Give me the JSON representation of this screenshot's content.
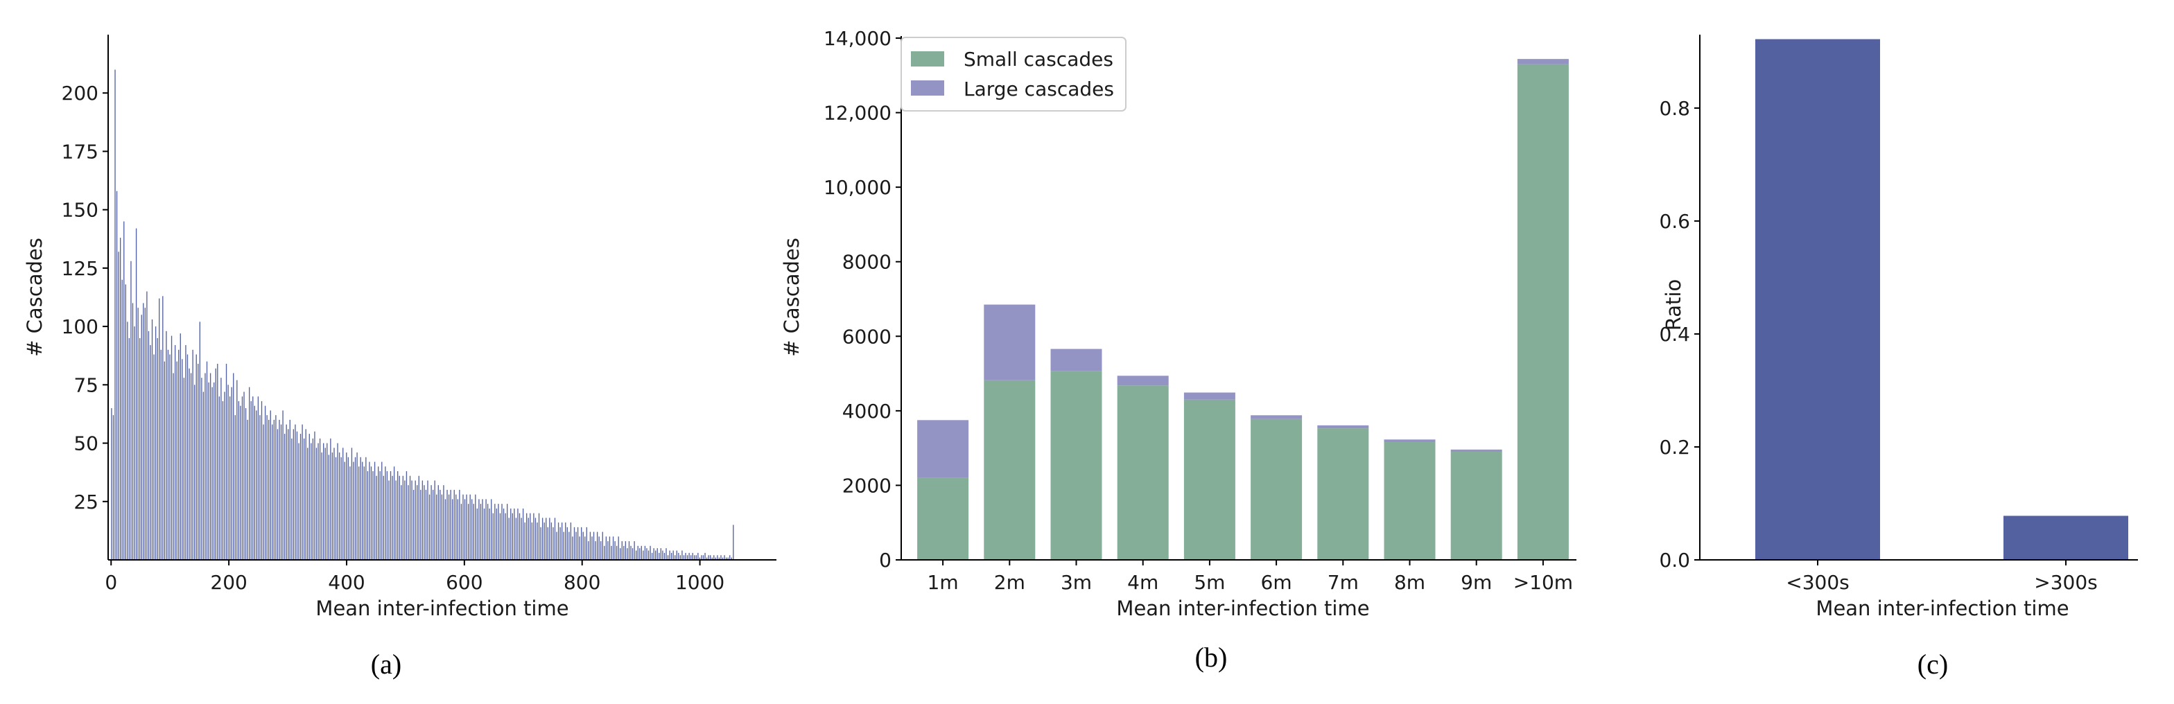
{
  "colors": {
    "bar_a": "#5461a0",
    "bar_c": "#5461a0",
    "small": "#84ae98",
    "large": "#9393c4",
    "axis": "#000000"
  },
  "chart_data": [
    {
      "type": "bar",
      "caption": "(a)",
      "xlabel": "Mean inter-infection time",
      "ylabel": "# Cascades",
      "xlim": [
        -5,
        1130
      ],
      "ylim": [
        0,
        225
      ],
      "xticks": [
        0,
        200,
        400,
        600,
        800,
        1000
      ],
      "xtick_labels": [
        "0",
        "200",
        "400",
        "600",
        "800",
        "1000"
      ],
      "yticks": [
        25,
        50,
        75,
        100,
        125,
        150,
        175,
        200
      ],
      "ytick_labels": [
        "25",
        "50",
        "75",
        "100",
        "125",
        "150",
        "175",
        "200"
      ],
      "bin_width": 3,
      "x_start": 0,
      "values": [
        65,
        62,
        210,
        158,
        132,
        138,
        120,
        145,
        118,
        102,
        95,
        128,
        110,
        100,
        142,
        108,
        95,
        105,
        110,
        108,
        115,
        98,
        92,
        103,
        88,
        100,
        95,
        112,
        90,
        113,
        85,
        98,
        90,
        88,
        96,
        80,
        92,
        85,
        90,
        97,
        86,
        78,
        92,
        88,
        82,
        80,
        90,
        75,
        88,
        84,
        102,
        78,
        72,
        80,
        85,
        76,
        80,
        74,
        76,
        82,
        84,
        70,
        78,
        68,
        72,
        84,
        75,
        70,
        74,
        80,
        62,
        77,
        68,
        66,
        70,
        72,
        65,
        60,
        74,
        68,
        70,
        66,
        64,
        70,
        62,
        68,
        58,
        66,
        62,
        60,
        64,
        58,
        60,
        62,
        56,
        60,
        58,
        64,
        54,
        58,
        56,
        60,
        52,
        56,
        58,
        55,
        50,
        54,
        58,
        52,
        56,
        48,
        54,
        50,
        52,
        55,
        48,
        50,
        52,
        46,
        50,
        48,
        50,
        45,
        52,
        46,
        48,
        44,
        50,
        46,
        44,
        48,
        42,
        46,
        44,
        40,
        48,
        42,
        44,
        46,
        40,
        44,
        42,
        40,
        44,
        38,
        42,
        40,
        38,
        42,
        36,
        40,
        38,
        42,
        36,
        40,
        38,
        34,
        38,
        36,
        40,
        34,
        38,
        36,
        32,
        36,
        34,
        38,
        32,
        36,
        34,
        30,
        34,
        32,
        36,
        30,
        34,
        32,
        30,
        34,
        28,
        32,
        30,
        34,
        28,
        32,
        30,
        28,
        32,
        26,
        30,
        28,
        30,
        26,
        30,
        28,
        26,
        30,
        24,
        28,
        26,
        28,
        24,
        28,
        26,
        24,
        28,
        22,
        26,
        24,
        26,
        22,
        26,
        24,
        22,
        26,
        20,
        24,
        22,
        24,
        20,
        24,
        22,
        20,
        24,
        18,
        22,
        20,
        22,
        18,
        22,
        20,
        18,
        22,
        16,
        20,
        18,
        20,
        16,
        20,
        18,
        16,
        20,
        14,
        18,
        16,
        18,
        14,
        18,
        16,
        14,
        18,
        12,
        16,
        14,
        16,
        12,
        16,
        14,
        12,
        16,
        10,
        14,
        12,
        14,
        10,
        14,
        12,
        10,
        14,
        8,
        12,
        10,
        12,
        8,
        12,
        10,
        8,
        12,
        6,
        10,
        8,
        10,
        6,
        10,
        8,
        6,
        10,
        5,
        8,
        6,
        8,
        5,
        8,
        6,
        5,
        8,
        4,
        6,
        5,
        6,
        4,
        6,
        5,
        4,
        6,
        3,
        5,
        4,
        5,
        3,
        5,
        4,
        3,
        5,
        2,
        4,
        3,
        4,
        2,
        4,
        3,
        2,
        4,
        2,
        3,
        2,
        3,
        2,
        3,
        2,
        2,
        3,
        1,
        2,
        2,
        3,
        1,
        2,
        2,
        1,
        2,
        1,
        2,
        1,
        2,
        1,
        2,
        1,
        1,
        2,
        1,
        15
      ]
    },
    {
      "type": "bar",
      "stacked": true,
      "caption": "(b)",
      "xlabel": "Mean inter-infection time",
      "ylabel": "# Cascades",
      "ylim": [
        0,
        14000
      ],
      "yticks": [
        0,
        2000,
        4000,
        6000,
        8000,
        10000,
        12000,
        14000
      ],
      "ytick_labels": [
        "0",
        "2000",
        "4000",
        "6000",
        "8000",
        "10,000",
        "12,000",
        "14,000"
      ],
      "categories": [
        "1m",
        "2m",
        "3m",
        "4m",
        "5m",
        "6m",
        "7m",
        "8m",
        "9m",
        ">10m"
      ],
      "legend_position": "top-left",
      "series": [
        {
          "name": "Small cascades",
          "values": [
            2200,
            4820,
            5070,
            4680,
            4300,
            3780,
            3530,
            3160,
            2900,
            13300
          ]
        },
        {
          "name": "Large cascades",
          "values": [
            1550,
            2030,
            590,
            260,
            190,
            100,
            80,
            70,
            60,
            140
          ]
        }
      ]
    },
    {
      "type": "bar",
      "caption": "(c)",
      "xlabel": "Mean inter-infection time",
      "ylabel": "Ratio",
      "ylim": [
        0,
        0.93
      ],
      "yticks": [
        0.0,
        0.2,
        0.4,
        0.6,
        0.8
      ],
      "ytick_labels": [
        "0.0",
        "0.2",
        "0.4",
        "0.6",
        "0.8"
      ],
      "categories": [
        "<300s",
        ">300s"
      ],
      "values": [
        0.922,
        0.078
      ]
    }
  ]
}
